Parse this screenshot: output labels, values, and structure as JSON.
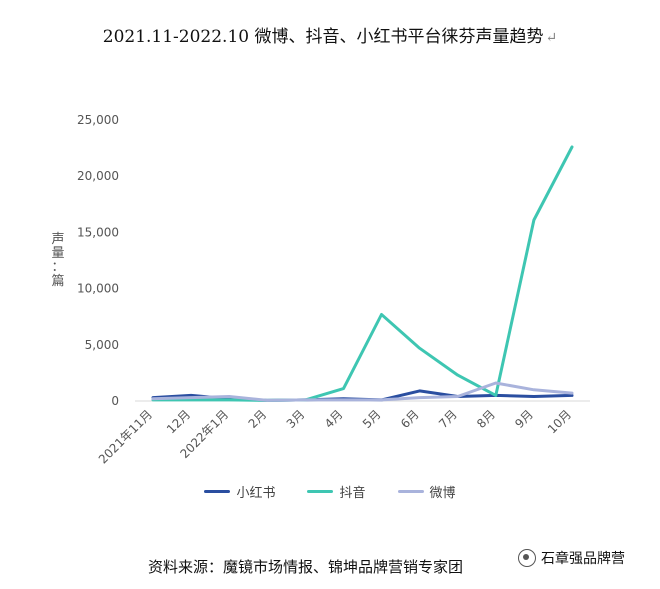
{
  "page_title": "2021.11-2022.10 微博、抖音、小红书平台徕芬声量趋势",
  "title_mark": "↵",
  "source_text": "资料来源：魔镜市场情报、锦坤品牌营销专家团",
  "watermark": {
    "text": "石章强品牌营",
    "icon": "wechat-icon"
  },
  "colors": {
    "xiaohongshu": "#2a4ea0",
    "douyin": "#3ec6b2",
    "weibo": "#a9b3dc",
    "axis": "#d9d9d9"
  },
  "chart_data": {
    "type": "line",
    "title": "2021.11-2022.10 微博、抖音、小红书平台徕芬声量趋势",
    "ylabel": "声量：篇",
    "xlabel": "",
    "categories": [
      "2021年11月",
      "12月",
      "2022年1月",
      "2月",
      "3月",
      "4月",
      "5月",
      "6月",
      "7月",
      "8月",
      "9月",
      "10月"
    ],
    "ylim": [
      0,
      25000
    ],
    "yticks": [
      "0",
      "5,000",
      "10,000",
      "15,000",
      "20,000",
      "25,000"
    ],
    "ytick_values": [
      0,
      5000,
      10000,
      15000,
      20000,
      25000
    ],
    "grid": false,
    "legend_position": "bottom",
    "series": [
      {
        "name": "小红书",
        "values": [
          300,
          500,
          200,
          50,
          100,
          200,
          100,
          900,
          400,
          500,
          400,
          500
        ]
      },
      {
        "name": "抖音",
        "values": [
          100,
          100,
          100,
          50,
          100,
          1100,
          7700,
          4700,
          2300,
          500,
          16100,
          22600
        ]
      },
      {
        "name": "微博",
        "values": [
          200,
          300,
          400,
          50,
          100,
          100,
          100,
          300,
          400,
          1600,
          1000,
          700
        ]
      }
    ]
  }
}
